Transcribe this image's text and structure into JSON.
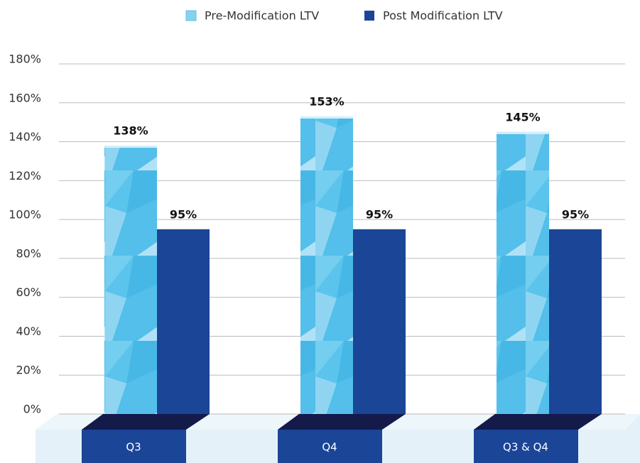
{
  "chart_data": {
    "type": "bar",
    "categories": [
      "Q3",
      "Q4",
      "Q3 & Q4"
    ],
    "series": [
      {
        "name": "Pre-Modification LTV",
        "color": "#5ac4ec",
        "values": [
          138,
          153,
          145
        ],
        "value_labels": [
          "138%",
          "153%",
          "145%"
        ]
      },
      {
        "name": "Post Modification LTV",
        "color": "#1b4597",
        "values": [
          95,
          95,
          95
        ],
        "value_labels": [
          "95%",
          "95%",
          "95%"
        ]
      }
    ],
    "ylim": [
      0,
      180
    ],
    "yticks": [
      {
        "value": 0,
        "label": "0%"
      },
      {
        "value": 20,
        "label": "20%"
      },
      {
        "value": 40,
        "label": "40%"
      },
      {
        "value": 60,
        "label": "60%"
      },
      {
        "value": 80,
        "label": "80%"
      },
      {
        "value": 100,
        "label": "100%"
      },
      {
        "value": 120,
        "label": "120%"
      },
      {
        "value": 140,
        "label": "140%"
      },
      {
        "value": 160,
        "label": "160%"
      },
      {
        "value": 180,
        "label": "180%"
      }
    ],
    "grid": true,
    "legend": "top"
  }
}
